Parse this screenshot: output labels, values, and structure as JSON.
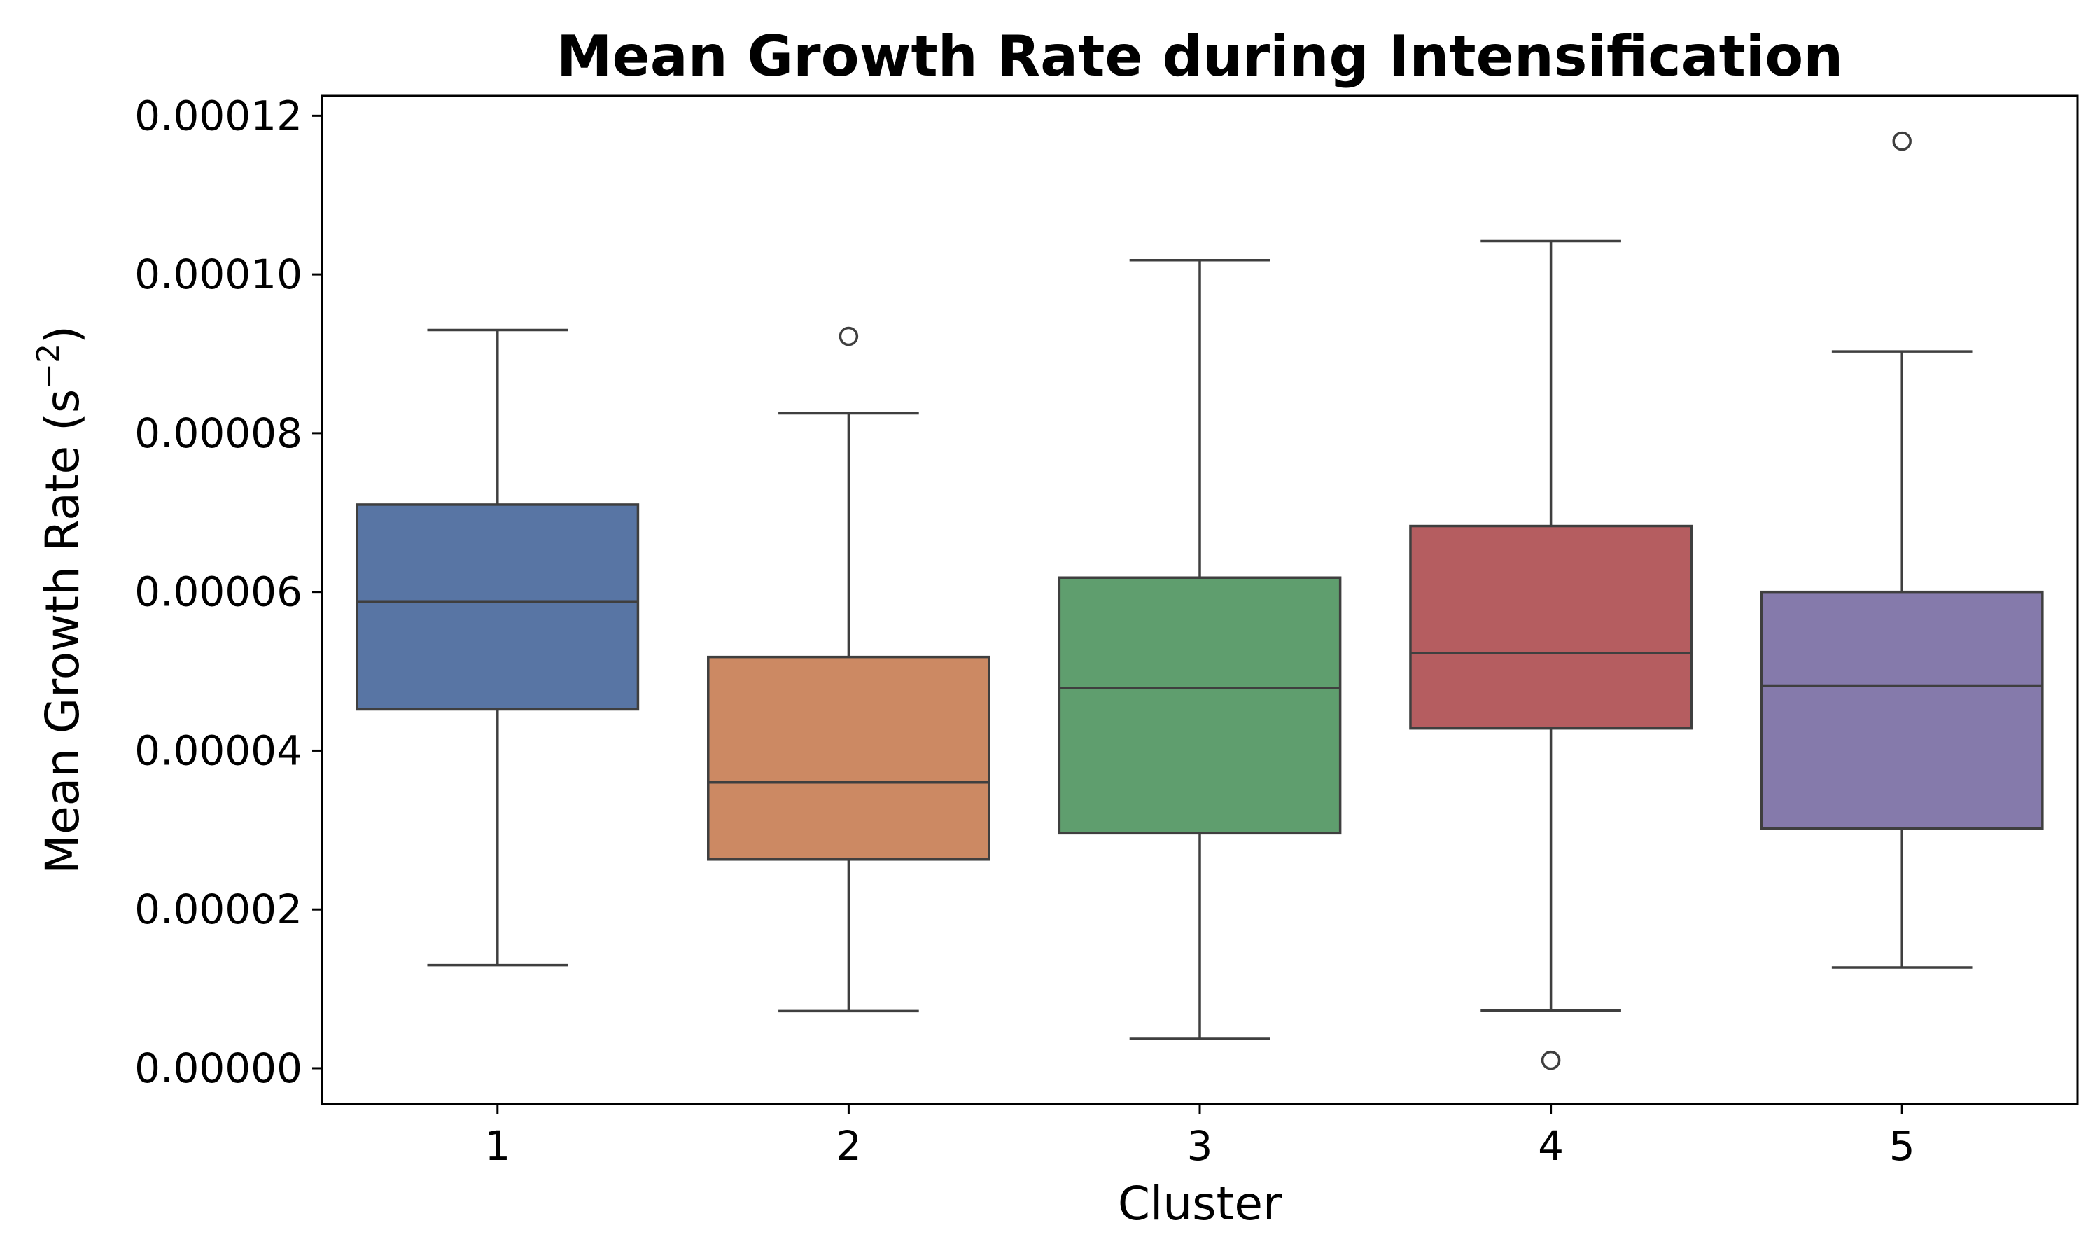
{
  "chart_data": {
    "type": "box",
    "title": "Mean Growth Rate during Intensification",
    "xlabel": "Cluster",
    "ylabel_main": "Mean Growth Rate (s",
    "ylabel_sup": "−2",
    "ylabel_close": ")",
    "categories": [
      "1",
      "2",
      "3",
      "4",
      "5"
    ],
    "ylim": [
      -4.5e-06,
      0.0001225
    ],
    "yticks": [
      0,
      2e-05,
      4e-05,
      6e-05,
      8e-05,
      0.0001,
      0.00012
    ],
    "ytick_labels": [
      "0.00000",
      "0.00002",
      "0.00004",
      "0.00006",
      "0.00008",
      "0.00010",
      "0.00012"
    ],
    "grid": false,
    "legend": "none",
    "boxes": [
      {
        "category": "1",
        "whisker_low": 1.3e-05,
        "q1": 4.52e-05,
        "median": 5.88e-05,
        "q3": 7.1e-05,
        "whisker_high": 9.3e-05,
        "outliers": [],
        "color": "#5875a4"
      },
      {
        "category": "2",
        "whisker_low": 7.2e-06,
        "q1": 2.63e-05,
        "median": 3.6e-05,
        "q3": 5.18e-05,
        "whisker_high": 8.25e-05,
        "outliers": [
          9.22e-05
        ],
        "color": "#cc8963"
      },
      {
        "category": "3",
        "whisker_low": 3.7e-06,
        "q1": 2.96e-05,
        "median": 4.79e-05,
        "q3": 6.18e-05,
        "whisker_high": 0.0001018,
        "outliers": [],
        "color": "#5f9e6e"
      },
      {
        "category": "4",
        "whisker_low": 7.3e-06,
        "q1": 4.28e-05,
        "median": 5.23e-05,
        "q3": 6.83e-05,
        "whisker_high": 0.0001042,
        "outliers": [
          1e-06
        ],
        "color": "#b55d60"
      },
      {
        "category": "5",
        "whisker_low": 1.27e-05,
        "q1": 3.02e-05,
        "median": 4.82e-05,
        "q3": 6e-05,
        "whisker_high": 9.03e-05,
        "outliers": [
          0.0001168
        ],
        "color": "#857aab"
      }
    ]
  }
}
